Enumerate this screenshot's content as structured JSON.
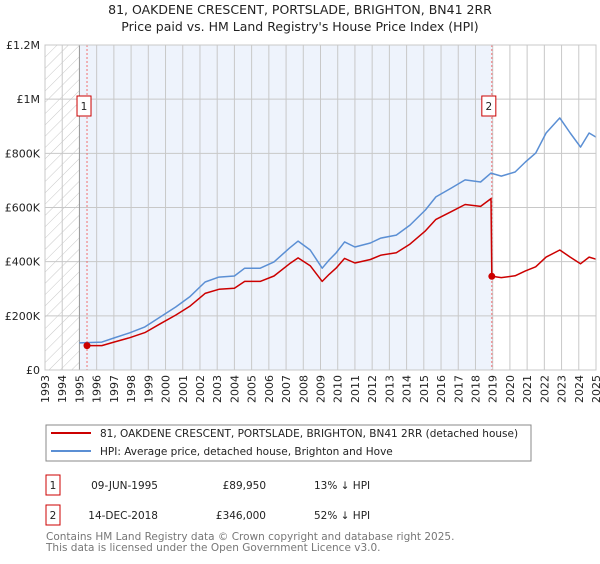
{
  "chart_data": {
    "type": "line",
    "title": "81, OAKDENE CRESCENT, PORTSLADE, BRIGHTON, BN41 2RR",
    "subtitle": "Price paid vs. HM Land Registry's House Price Index (HPI)",
    "xlim": [
      1993,
      2025
    ],
    "ylim": [
      0,
      1200000
    ],
    "grid": true,
    "x_ticks": [
      "1993",
      "1994",
      "1995",
      "1996",
      "1997",
      "1998",
      "1999",
      "2000",
      "2001",
      "2002",
      "2003",
      "2004",
      "2005",
      "2006",
      "2007",
      "2008",
      "2009",
      "2010",
      "2011",
      "2012",
      "2013",
      "2014",
      "2015",
      "2016",
      "2017",
      "2018",
      "2019",
      "2020",
      "2021",
      "2022",
      "2023",
      "2024",
      "2025"
    ],
    "y_ticks": [
      {
        "value": 0,
        "label": "£0"
      },
      {
        "value": 200000,
        "label": "£200K"
      },
      {
        "value": 400000,
        "label": "£400K"
      },
      {
        "value": 600000,
        "label": "£600K"
      },
      {
        "value": 800000,
        "label": "£800K"
      },
      {
        "value": 1000000,
        "label": "£1M"
      },
      {
        "value": 1200000,
        "label": "£1.2M"
      }
    ],
    "series": [
      {
        "name": "81, OAKDENE CRESCENT, PORTSLADE, BRIGHTON, BN41 2RR (detached house)",
        "color": "#cc0000",
        "x": [
          1995.44,
          1996.3,
          1997.0,
          1997.9,
          1998.8,
          1999.7,
          2000.6,
          2001.4,
          2002.3,
          2003.1,
          2004.0,
          2004.6,
          2005.5,
          2006.3,
          2007.2,
          2007.7,
          2008.4,
          2009.1,
          2009.5,
          2009.9,
          2010.4,
          2011.0,
          2011.9,
          2012.5,
          2013.4,
          2014.2,
          2015.1,
          2015.7,
          2016.6,
          2017.4,
          2018.3,
          2018.9,
          2018.95,
          2019.5,
          2020.3,
          2020.9,
          2021.5,
          2022.1,
          2022.9,
          2023.5,
          2024.1,
          2024.6,
          2025.0
        ],
        "y": [
          89950,
          90000,
          103000,
          119000,
          138000,
          171000,
          203000,
          235000,
          283000,
          298000,
          302000,
          327000,
          327000,
          347000,
          392000,
          414000,
          385000,
          327000,
          353000,
          376000,
          412000,
          395000,
          408000,
          424000,
          433000,
          465000,
          514000,
          556000,
          585000,
          611000,
          604000,
          633000,
          346000,
          341000,
          348000,
          366000,
          381000,
          417000,
          443000,
          417000,
          392000,
          417000,
          409000
        ]
      },
      {
        "name": "HPI: Average price, detached house, Brighton and Hove",
        "color": "#5b8fd4",
        "x": [
          1995.0,
          1995.44,
          1996.3,
          1997.0,
          1997.9,
          1998.8,
          1999.7,
          2000.6,
          2001.4,
          2002.3,
          2003.1,
          2004.0,
          2004.6,
          2005.5,
          2006.3,
          2007.2,
          2007.7,
          2008.4,
          2009.1,
          2009.5,
          2009.9,
          2010.4,
          2011.0,
          2011.9,
          2012.5,
          2013.4,
          2014.2,
          2015.1,
          2015.7,
          2016.6,
          2017.4,
          2018.3,
          2018.9,
          2019.5,
          2020.3,
          2020.9,
          2021.5,
          2022.1,
          2022.9,
          2023.5,
          2024.1,
          2024.6,
          2025.0
        ],
        "y": [
          100000,
          101000,
          103000,
          118000,
          137000,
          159000,
          196000,
          233000,
          270000,
          325000,
          343000,
          347000,
          376000,
          376000,
          399000,
          450000,
          476000,
          443000,
          376000,
          406000,
          432000,
          473000,
          454000,
          469000,
          487000,
          498000,
          535000,
          591000,
          639000,
          672000,
          702000,
          694000,
          727000,
          716000,
          731000,
          768000,
          801000,
          875000,
          931000,
          875000,
          823000,
          875000,
          860000
        ]
      }
    ],
    "sales": [
      {
        "num": "1",
        "x": 1995.44,
        "value": 89950,
        "date": "09-JUN-1995",
        "price": "£89,950",
        "hpi_diff": "13% ↓ HPI"
      },
      {
        "num": "2",
        "x": 2018.95,
        "value": 346000,
        "date": "14-DEC-2018",
        "price": "£346,000",
        "hpi_diff": "52% ↓ HPI"
      }
    ],
    "shaded_range": [
      1995.44,
      2018.95
    ],
    "hatched_range": [
      1993,
      1995
    ],
    "legend_placement": "below"
  },
  "footer": {
    "line1": "Contains HM Land Registry data © Crown copyright and database right 2025.",
    "line2": "This data is licensed under the Open Government Licence v3.0."
  }
}
